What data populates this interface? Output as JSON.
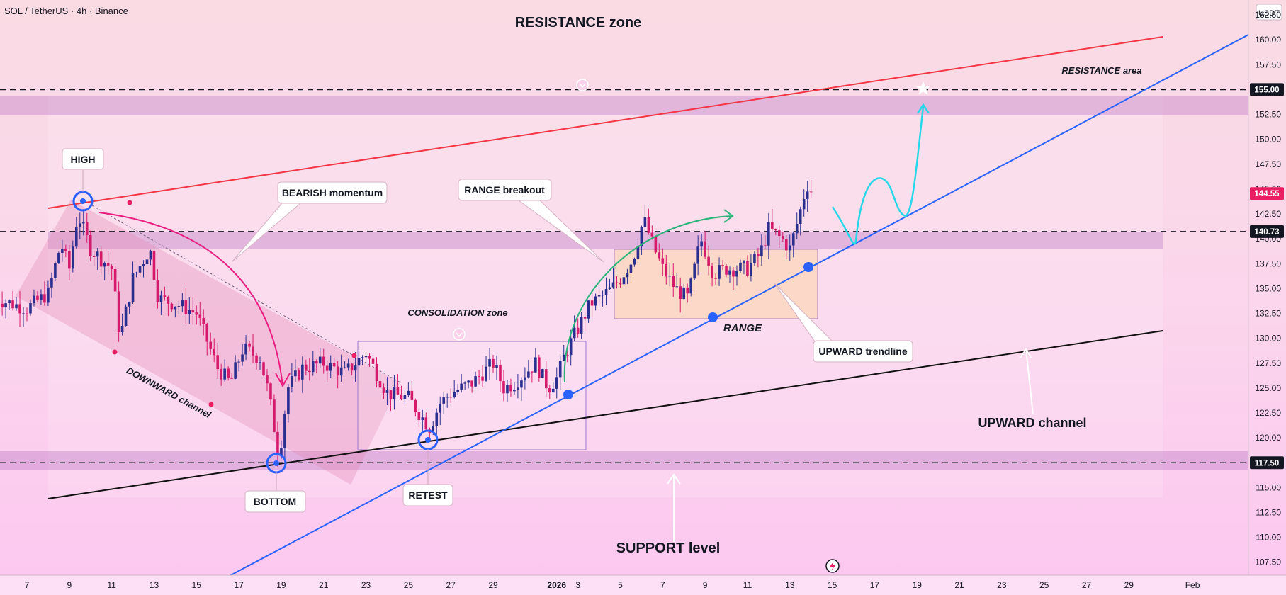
{
  "header": {
    "symbol": "SOL / TetherUS · 4h · Binance"
  },
  "chart_data": {
    "type": "candlestick",
    "title": "RESISTANCE zone",
    "currency": "USDT",
    "ylim": [
      106.2,
      164.0
    ],
    "x_days": [
      5.5,
      36.0
    ],
    "x_ticks": [
      {
        "label": "7",
        "day": 7
      },
      {
        "label": "9",
        "day": 9
      },
      {
        "label": "11",
        "day": 11
      },
      {
        "label": "13",
        "day": 13
      },
      {
        "label": "15",
        "day": 15
      },
      {
        "label": "17",
        "day": 17
      },
      {
        "label": "19",
        "day": 19
      },
      {
        "label": "21",
        "day": 21
      },
      {
        "label": "23",
        "day": 23
      },
      {
        "label": "25",
        "day": 25
      },
      {
        "label": "27",
        "day": 27
      },
      {
        "label": "29",
        "day": 29
      },
      {
        "label": "2026",
        "day": 32
      },
      {
        "label": "3",
        "day": 33
      },
      {
        "label": "5",
        "day": 35
      },
      {
        "label": "7",
        "day": 37
      },
      {
        "label": "9",
        "day": 39
      },
      {
        "label": "11",
        "day": 41
      },
      {
        "label": "13",
        "day": 43
      },
      {
        "label": "15",
        "day": 45
      },
      {
        "label": "17",
        "day": 47
      },
      {
        "label": "19",
        "day": 49
      },
      {
        "label": "21",
        "day": 51
      },
      {
        "label": "23",
        "day": 53
      },
      {
        "label": "25",
        "day": 55
      },
      {
        "label": "27",
        "day": 57
      },
      {
        "label": "29",
        "day": 59
      },
      {
        "label": "Feb",
        "day": 62
      }
    ],
    "y_ticks": [
      "107.50",
      "110.00",
      "112.50",
      "115.00",
      "117.50",
      "120.00",
      "122.50",
      "125.00",
      "127.50",
      "130.00",
      "132.50",
      "135.00",
      "137.50",
      "140.00",
      "142.50",
      "145.00",
      "147.50",
      "150.00",
      "152.50",
      "155.00",
      "157.50",
      "160.00",
      "162.50"
    ],
    "price_tags": [
      {
        "label": "155.00",
        "value": 155.0,
        "color": "#131722"
      },
      {
        "label": "144.55",
        "value": 144.55,
        "color": "#e91e63"
      },
      {
        "label": "140.73",
        "value": 140.73,
        "color": "#131722"
      },
      {
        "label": "117.50",
        "value": 117.5,
        "color": "#131722"
      }
    ],
    "horizontal_levels": [
      155.0,
      140.73,
      117.5
    ],
    "price_path": [
      {
        "day": 5.5,
        "price": 134.0
      },
      {
        "day": 7.0,
        "price": 133.0
      },
      {
        "day": 8.0,
        "price": 134.5
      },
      {
        "day": 8.6,
        "price": 139.5
      },
      {
        "day": 9.0,
        "price": 137.0
      },
      {
        "day": 9.4,
        "price": 142.5
      },
      {
        "day": 10.0,
        "price": 139.0
      },
      {
        "day": 11.0,
        "price": 137.0
      },
      {
        "day": 11.4,
        "price": 130.0
      },
      {
        "day": 12.0,
        "price": 136.0
      },
      {
        "day": 12.8,
        "price": 139.0
      },
      {
        "day": 13.2,
        "price": 134.0
      },
      {
        "day": 14.0,
        "price": 133.5
      },
      {
        "day": 15.0,
        "price": 132.5
      },
      {
        "day": 16.0,
        "price": 127.0
      },
      {
        "day": 16.6,
        "price": 125.5
      },
      {
        "day": 17.2,
        "price": 129.0
      },
      {
        "day": 18.0,
        "price": 128.0
      },
      {
        "day": 18.4,
        "price": 124.5
      },
      {
        "day": 18.9,
        "price": 118.0
      },
      {
        "day": 19.3,
        "price": 125.0
      },
      {
        "day": 20.0,
        "price": 127.0
      },
      {
        "day": 21.0,
        "price": 127.5
      },
      {
        "day": 22.0,
        "price": 126.5
      },
      {
        "day": 23.0,
        "price": 128.5
      },
      {
        "day": 23.5,
        "price": 126.5
      },
      {
        "day": 24.0,
        "price": 124.5
      },
      {
        "day": 25.0,
        "price": 124.0
      },
      {
        "day": 26.0,
        "price": 121.0
      },
      {
        "day": 26.5,
        "price": 123.5
      },
      {
        "day": 27.0,
        "price": 124.5
      },
      {
        "day": 28.0,
        "price": 125.5
      },
      {
        "day": 29.0,
        "price": 127.5
      },
      {
        "day": 29.5,
        "price": 125.0
      },
      {
        "day": 30.0,
        "price": 125.5
      },
      {
        "day": 31.0,
        "price": 127.5
      },
      {
        "day": 31.6,
        "price": 125.0
      },
      {
        "day": 32.0,
        "price": 126.0
      },
      {
        "day": 32.4,
        "price": 128.5
      },
      {
        "day": 33.0,
        "price": 131.0
      },
      {
        "day": 33.6,
        "price": 133.5
      },
      {
        "day": 34.0,
        "price": 134.0
      },
      {
        "day": 34.6,
        "price": 135.0
      },
      {
        "day": 35.0,
        "price": 136.0
      },
      {
        "day": 35.6,
        "price": 138.0
      },
      {
        "day": 36.1,
        "price": 142.0
      },
      {
        "day": 36.6,
        "price": 139.0
      },
      {
        "day": 37.0,
        "price": 137.0
      },
      {
        "day": 37.6,
        "price": 135.0
      },
      {
        "day": 38.2,
        "price": 134.0
      },
      {
        "day": 38.8,
        "price": 140.0
      },
      {
        "day": 39.4,
        "price": 136.5
      },
      {
        "day": 40.0,
        "price": 137.0
      },
      {
        "day": 40.6,
        "price": 137.0
      },
      {
        "day": 41.0,
        "price": 137.0
      },
      {
        "day": 41.6,
        "price": 138.5
      },
      {
        "day": 42.0,
        "price": 141.0
      },
      {
        "day": 42.6,
        "price": 140.0
      },
      {
        "day": 43.0,
        "price": 139.0
      },
      {
        "day": 43.4,
        "price": 142.0
      },
      {
        "day": 43.8,
        "price": 145.5
      },
      {
        "day": 44.1,
        "price": 144.55
      }
    ],
    "annotations": {
      "resistance_area": "RESISTANCE area",
      "high": "HIGH",
      "bearish_momentum": "BEARISH momentum",
      "range_breakout": "RANGE breakout",
      "downward_channel": "DOWNWARD channel",
      "consolidation_zone": "CONSOLIDATION zone",
      "range": "RANGE",
      "upward_trendline": "UPWARD trendline",
      "upward_channel": "UPWARD channel",
      "bottom": "BOTTOM",
      "retest": "RETEST",
      "support_level": "SUPPORT level"
    }
  }
}
